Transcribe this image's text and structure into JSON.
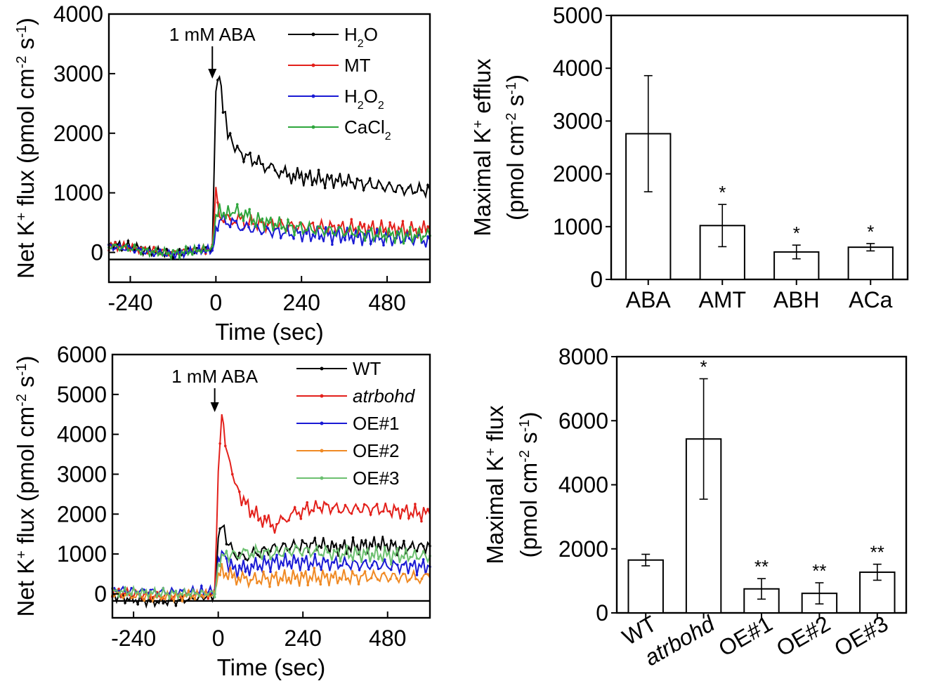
{
  "colors": {
    "black": "#000000",
    "red": "#e3201b",
    "blue": "#1a1ad4",
    "green": "#2ea63c",
    "orange": "#f08a24",
    "light_green": "#6cc070"
  },
  "chart_data": [
    {
      "id": "A",
      "type": "line",
      "xlabel": "Time (sec)",
      "ylabel": "Net K+ flux (pmol cm-2 s-1)",
      "ylabel_parts": {
        "main": "Net K",
        "sup1": "+",
        "mid": " flux (pmol cm",
        "sup2": "-2",
        "mid2": " s",
        "sup3": "-1",
        "end": ")"
      },
      "xlim": [
        -300,
        600
      ],
      "ylim": [
        -500,
        4000
      ],
      "xticks": [
        -240,
        0,
        240,
        480
      ],
      "yticks": [
        0,
        1000,
        2000,
        3000,
        4000
      ],
      "annotation": {
        "text": "1 mM ABA",
        "x": -10
      },
      "series": [
        {
          "name": "H2O",
          "label": {
            "main": "H",
            "sub": "2",
            "end": "O"
          },
          "color": "#000000",
          "points": [
            [
              -300,
              140
            ],
            [
              -240,
              100
            ],
            [
              -180,
              20
            ],
            [
              -120,
              -20
            ],
            [
              -60,
              30
            ],
            [
              -10,
              80
            ],
            [
              0,
              2700
            ],
            [
              10,
              3000
            ],
            [
              20,
              2400
            ],
            [
              40,
              1900
            ],
            [
              60,
              1700
            ],
            [
              90,
              1600
            ],
            [
              120,
              1500
            ],
            [
              160,
              1400
            ],
            [
              200,
              1300
            ],
            [
              240,
              1270
            ],
            [
              300,
              1220
            ],
            [
              360,
              1200
            ],
            [
              420,
              1150
            ],
            [
              480,
              1100
            ],
            [
              540,
              1050
            ],
            [
              600,
              1050
            ]
          ]
        },
        {
          "name": "MT",
          "label": {
            "main": "MT"
          },
          "color": "#e3201b",
          "points": [
            [
              -300,
              120
            ],
            [
              -240,
              80
            ],
            [
              -180,
              30
            ],
            [
              -120,
              -10
            ],
            [
              -60,
              40
            ],
            [
              -10,
              60
            ],
            [
              0,
              1050
            ],
            [
              10,
              600
            ],
            [
              40,
              560
            ],
            [
              80,
              520
            ],
            [
              140,
              470
            ],
            [
              200,
              440
            ],
            [
              260,
              430
            ],
            [
              320,
              420
            ],
            [
              380,
              410
            ],
            [
              440,
              400
            ],
            [
              500,
              390
            ],
            [
              560,
              380
            ],
            [
              600,
              380
            ]
          ]
        },
        {
          "name": "H2O2",
          "label": {
            "main": "H",
            "sub": "2",
            "end": "O",
            "sub2": "2"
          },
          "color": "#1a1ad4",
          "points": [
            [
              -300,
              100
            ],
            [
              -240,
              60
            ],
            [
              -180,
              0
            ],
            [
              -120,
              -30
            ],
            [
              -60,
              20
            ],
            [
              -10,
              40
            ],
            [
              0,
              420
            ],
            [
              10,
              560
            ],
            [
              40,
              500
            ],
            [
              80,
              420
            ],
            [
              140,
              370
            ],
            [
              200,
              330
            ],
            [
              260,
              300
            ],
            [
              320,
              290
            ],
            [
              380,
              270
            ],
            [
              440,
              250
            ],
            [
              500,
              230
            ],
            [
              560,
              220
            ],
            [
              600,
              210
            ]
          ]
        },
        {
          "name": "CaCl2",
          "label": {
            "main": "CaCl",
            "sub": "2"
          },
          "color": "#2ea63c",
          "points": [
            [
              -300,
              110
            ],
            [
              -240,
              70
            ],
            [
              -180,
              10
            ],
            [
              -120,
              -20
            ],
            [
              -60,
              30
            ],
            [
              -10,
              60
            ],
            [
              0,
              550
            ],
            [
              10,
              680
            ],
            [
              40,
              640
            ],
            [
              60,
              720
            ],
            [
              100,
              560
            ],
            [
              160,
              480
            ],
            [
              220,
              420
            ],
            [
              280,
              380
            ],
            [
              340,
              360
            ],
            [
              400,
              330
            ],
            [
              460,
              300
            ],
            [
              520,
              290
            ],
            [
              600,
              280
            ]
          ]
        }
      ]
    },
    {
      "id": "B",
      "type": "bar",
      "ylabel": "Maximal K+ efflux (pmol cm-2 s-1)",
      "ylabel_line1": {
        "main": "Maximal K",
        "sup": "+",
        "end": " efflux"
      },
      "ylabel_line2": {
        "main": "(pmol cm",
        "sup1": "-2",
        "mid": " s",
        "sup2": "-1",
        "end": ")"
      },
      "ylim": [
        0,
        5000
      ],
      "yticks": [
        0,
        1000,
        2000,
        3000,
        4000,
        5000
      ],
      "categories": [
        "ABA",
        "AMT",
        "ABH",
        "ACa"
      ],
      "values": [
        2760,
        1020,
        520,
        610
      ],
      "errors": [
        1100,
        400,
        130,
        70
      ],
      "sig": [
        "",
        "*",
        "*",
        "*"
      ]
    },
    {
      "id": "C",
      "type": "line",
      "xlabel": "Time (sec)",
      "ylabel": "Net K+ flux (pmol cm-2 s-1)",
      "ylabel_parts": {
        "main": "Net K",
        "sup1": "+",
        "mid": " flux (pmol cm",
        "sup2": "-2",
        "mid2": " s",
        "sup3": "-1",
        "end": ")"
      },
      "xlim": [
        -300,
        600
      ],
      "ylim": [
        -600,
        6000
      ],
      "xticks": [
        -240,
        0,
        240,
        480
      ],
      "yticks": [
        0,
        1000,
        2000,
        3000,
        4000,
        5000,
        6000
      ],
      "annotation": {
        "text": "1 mM ABA",
        "x": -10
      },
      "series": [
        {
          "name": "WT",
          "label": {
            "main": "WT"
          },
          "color": "#000000",
          "points": [
            [
              -300,
              -50
            ],
            [
              -240,
              -150
            ],
            [
              -180,
              -200
            ],
            [
              -120,
              -180
            ],
            [
              -60,
              -100
            ],
            [
              -10,
              -50
            ],
            [
              0,
              1400
            ],
            [
              10,
              1750
            ],
            [
              30,
              1200
            ],
            [
              60,
              900
            ],
            [
              100,
              1000
            ],
            [
              160,
              1150
            ],
            [
              220,
              1200
            ],
            [
              280,
              1250
            ],
            [
              340,
              1150
            ],
            [
              400,
              1200
            ],
            [
              460,
              1250
            ],
            [
              520,
              1150
            ],
            [
              600,
              1200
            ]
          ]
        },
        {
          "name": "atrbohd",
          "label": {
            "main": "atrbohd",
            "italic": true
          },
          "color": "#e3201b",
          "points": [
            [
              -300,
              50
            ],
            [
              -240,
              0
            ],
            [
              -180,
              -50
            ],
            [
              -120,
              -60
            ],
            [
              -60,
              -20
            ],
            [
              -10,
              0
            ],
            [
              0,
              3000
            ],
            [
              10,
              4500
            ],
            [
              20,
              3800
            ],
            [
              40,
              3000
            ],
            [
              60,
              2500
            ],
            [
              90,
              2100
            ],
            [
              120,
              1900
            ],
            [
              160,
              1700
            ],
            [
              200,
              1950
            ],
            [
              240,
              2100
            ],
            [
              300,
              2200
            ],
            [
              360,
              2100
            ],
            [
              420,
              2150
            ],
            [
              480,
              2100
            ],
            [
              540,
              2050
            ],
            [
              600,
              2000
            ]
          ]
        },
        {
          "name": "OE#1",
          "label": {
            "main": "OE#1"
          },
          "color": "#1a1ad4",
          "points": [
            [
              -300,
              100
            ],
            [
              -240,
              80
            ],
            [
              -180,
              60
            ],
            [
              -120,
              50
            ],
            [
              -60,
              70
            ],
            [
              -10,
              60
            ],
            [
              0,
              900
            ],
            [
              10,
              1100
            ],
            [
              30,
              700
            ],
            [
              60,
              600
            ],
            [
              100,
              700
            ],
            [
              160,
              800
            ],
            [
              220,
              800
            ],
            [
              280,
              780
            ],
            [
              340,
              760
            ],
            [
              400,
              740
            ],
            [
              460,
              720
            ],
            [
              520,
              700
            ],
            [
              600,
              680
            ]
          ]
        },
        {
          "name": "OE#2",
          "label": {
            "main": "OE#2"
          },
          "color": "#f08a24",
          "points": [
            [
              -300,
              0
            ],
            [
              -240,
              -50
            ],
            [
              -180,
              -80
            ],
            [
              -120,
              -60
            ],
            [
              -60,
              -40
            ],
            [
              -10,
              -20
            ],
            [
              0,
              400
            ],
            [
              10,
              560
            ],
            [
              40,
              450
            ],
            [
              80,
              350
            ],
            [
              140,
              380
            ],
            [
              200,
              400
            ],
            [
              260,
              420
            ],
            [
              320,
              410
            ],
            [
              380,
              420
            ],
            [
              440,
              430
            ],
            [
              500,
              420
            ],
            [
              560,
              410
            ],
            [
              600,
              400
            ]
          ]
        },
        {
          "name": "OE#3",
          "label": {
            "main": "OE#3"
          },
          "color": "#6cc070",
          "points": [
            [
              -300,
              60
            ],
            [
              -240,
              40
            ],
            [
              -180,
              20
            ],
            [
              -120,
              0
            ],
            [
              -60,
              10
            ],
            [
              -10,
              20
            ],
            [
              0,
              800
            ],
            [
              10,
              1000
            ],
            [
              30,
              950
            ],
            [
              60,
              1000
            ],
            [
              100,
              1050
            ],
            [
              160,
              1000
            ],
            [
              220,
              1100
            ],
            [
              280,
              1050
            ],
            [
              340,
              1000
            ],
            [
              400,
              1000
            ],
            [
              460,
              980
            ],
            [
              520,
              960
            ],
            [
              600,
              950
            ]
          ]
        }
      ]
    },
    {
      "id": "D",
      "type": "bar",
      "ylabel": "Maximal K+ flux (pmol cm-2 s-1)",
      "ylabel_line1": {
        "main": "Maximal K",
        "sup": "+",
        "end": " flux"
      },
      "ylabel_line2": {
        "main": "(pmol cm",
        "sup1": "-2",
        "mid": " s",
        "sup2": "-1",
        "end": ")"
      },
      "ylim": [
        0,
        8000
      ],
      "yticks": [
        0,
        2000,
        4000,
        6000,
        8000
      ],
      "categories": [
        "WT",
        "atrbohd",
        "OE#1",
        "OE#2",
        "OE#3"
      ],
      "italic_categories": [
        false,
        true,
        false,
        false,
        false
      ],
      "values": [
        1650,
        5430,
        750,
        610,
        1270
      ],
      "errors": [
        180,
        1880,
        320,
        330,
        250
      ],
      "sig": [
        "",
        "*",
        "**",
        "**",
        "**"
      ]
    }
  ]
}
